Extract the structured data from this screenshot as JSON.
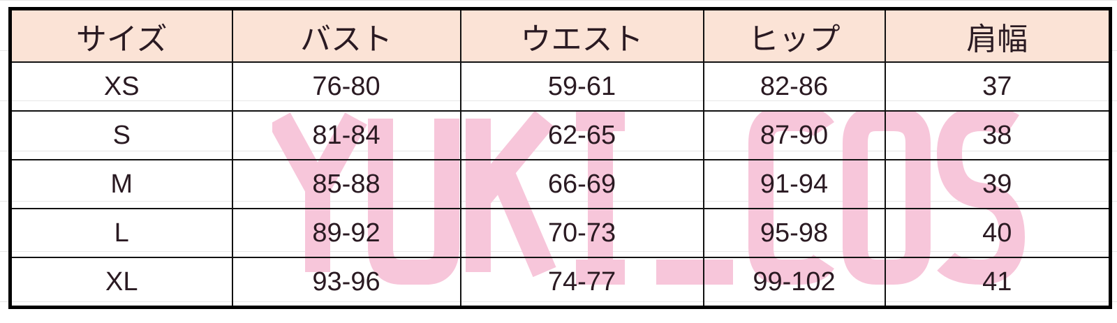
{
  "watermark": "YUKI_COS",
  "colors": {
    "header_bg": "#fbe3d6",
    "watermark": "#f7c6da",
    "text": "#2a1a22"
  },
  "table": {
    "headers": [
      "サイズ",
      "バスト",
      "ウエスト",
      "ヒップ",
      "肩幅"
    ],
    "rows": [
      [
        "XS",
        "76-80",
        "59-61",
        "82-86",
        "37"
      ],
      [
        "S",
        "81-84",
        "62-65",
        "87-90",
        "38"
      ],
      [
        "M",
        "85-88",
        "66-69",
        "91-94",
        "39"
      ],
      [
        "L",
        "89-92",
        "70-73",
        "95-98",
        "40"
      ],
      [
        "XL",
        "93-96",
        "74-77",
        "99-102",
        "41"
      ]
    ]
  }
}
